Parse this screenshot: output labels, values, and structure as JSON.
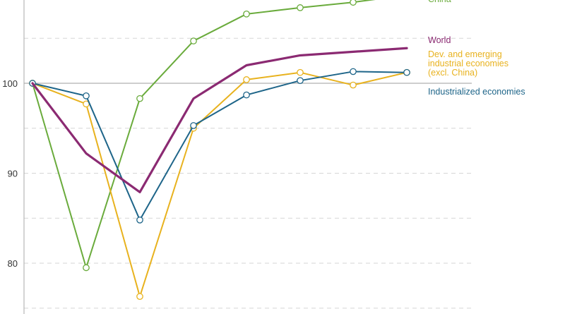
{
  "chart_data": {
    "type": "line",
    "title": "",
    "xlabel": "",
    "ylabel": "",
    "x": [
      1,
      2,
      3,
      4,
      5,
      6,
      7,
      8
    ],
    "ylim": [
      77,
      112
    ],
    "yticks": [
      "80",
      "90",
      "100"
    ],
    "grid": "horizontal dashed",
    "reference_line": 100,
    "series": [
      {
        "name": "China",
        "color": "#6aab3c",
        "marker": "circle",
        "values": [
          100,
          79.5,
          98.3,
          104.7,
          107.7,
          108.4,
          109,
          109.8
        ]
      },
      {
        "name": "World",
        "color": "#8b2a72",
        "marker": "none",
        "values": [
          100,
          92.2,
          87.9,
          98.3,
          102,
          103.1,
          103.5,
          103.9
        ]
      },
      {
        "name": "Dev. and emerging industrial economies (excl. China)",
        "label_lines": [
          "Dev. and emerging",
          "industrial economies",
          "(excl. China)"
        ],
        "color": "#e8b21e",
        "marker": "circle",
        "values": [
          100,
          97.7,
          76.3,
          95,
          100.4,
          101.2,
          99.8,
          101.2
        ]
      },
      {
        "name": "Industrialized economies",
        "color": "#1e6589",
        "marker": "circle",
        "values": [
          100,
          98.6,
          84.8,
          95.3,
          98.7,
          100.3,
          101.3,
          101.2
        ]
      }
    ]
  }
}
